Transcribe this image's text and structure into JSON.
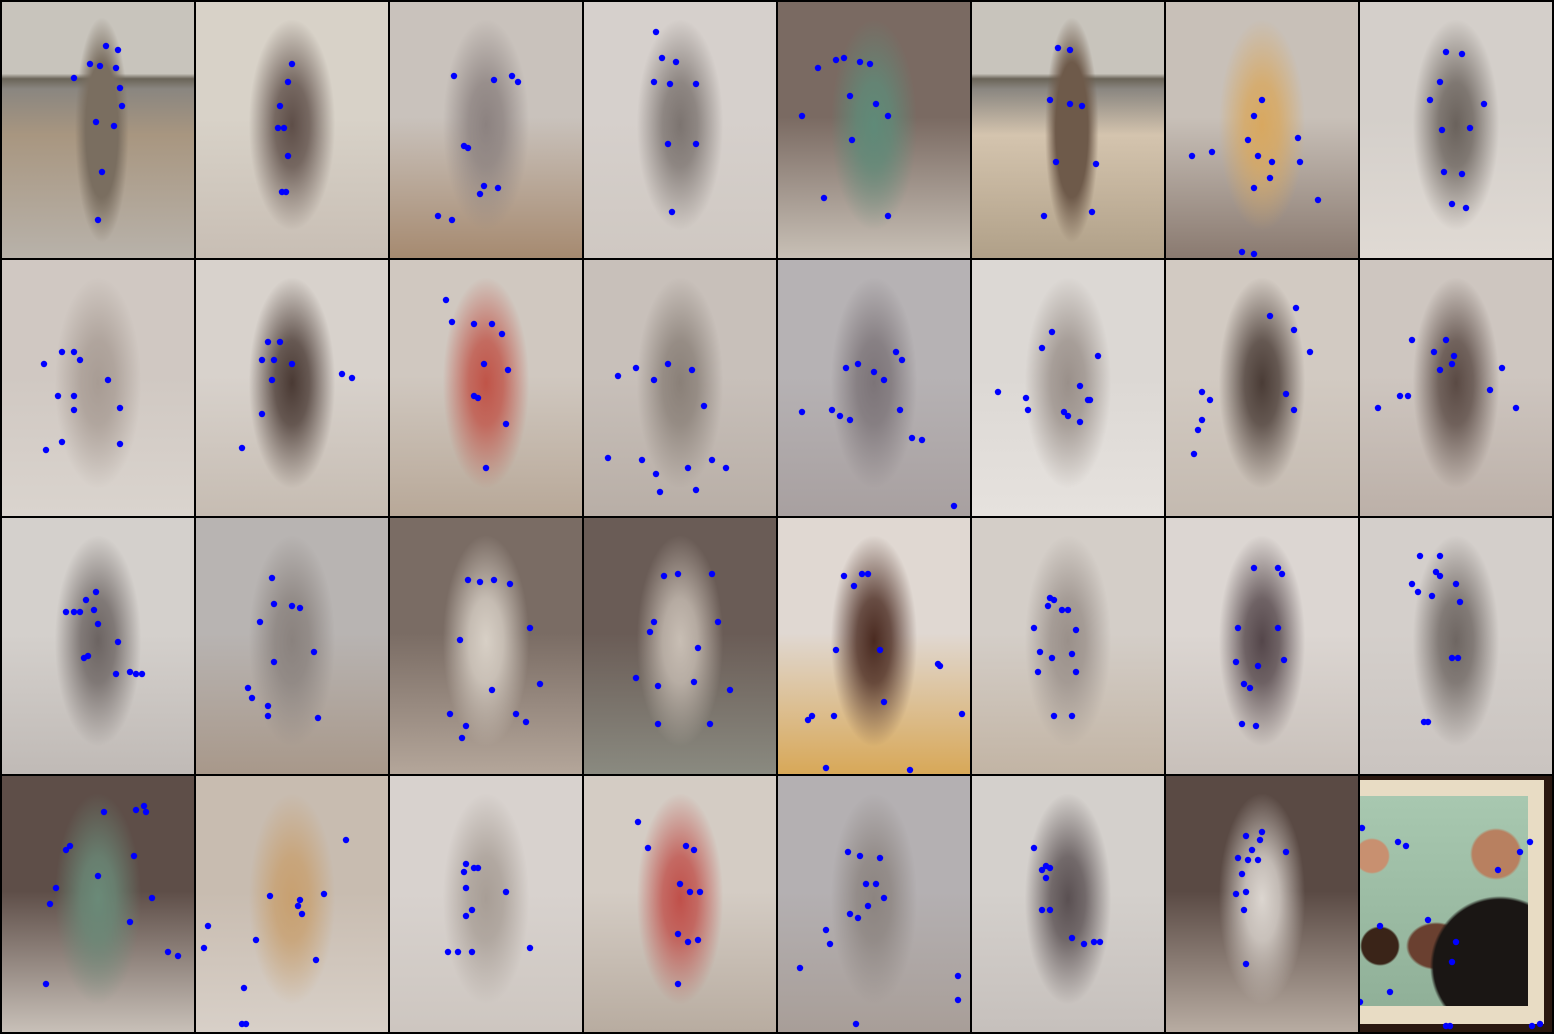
{
  "grid": {
    "rows": 4,
    "cols": 8,
    "keypoint_color": "#0000ff",
    "divider_color": "#000000"
  },
  "tiles": [
    {
      "scene": "beach-person-standing",
      "palette": [
        "#b8b2aa",
        "#7a6e60",
        "#a89680"
      ]
    },
    {
      "scene": "blurred-person-light-wall",
      "palette": [
        "#d8d2c8",
        "#5e4e48",
        "#c8beb4"
      ]
    },
    {
      "scene": "blurred-person-gray",
      "palette": [
        "#c9c2bc",
        "#8c8280",
        "#a68a70"
      ]
    },
    {
      "scene": "blurred-person-standing-gray",
      "palette": [
        "#d6d0cc",
        "#7c7470",
        "#cfc8c2"
      ]
    },
    {
      "scene": "blurred-people-green-chair",
      "palette": [
        "#7a6a62",
        "#5f8a78",
        "#c8c0b6"
      ]
    },
    {
      "scene": "beach-man-shorts",
      "palette": [
        "#b0a088",
        "#6e5a4a",
        "#d4c4ae"
      ]
    },
    {
      "scene": "blurred-figure-orange",
      "palette": [
        "#c8c0b8",
        "#d8a860",
        "#8a7a70"
      ]
    },
    {
      "scene": "blurred-person-rails",
      "palette": [
        "#d4cfca",
        "#6a625c",
        "#e0dad4"
      ]
    },
    {
      "scene": "blurred-light-gray",
      "palette": [
        "#d0c8c2",
        "#a89c94",
        "#dad4ce"
      ]
    },
    {
      "scene": "blurred-dark-diagonal",
      "palette": [
        "#d8d2cc",
        "#4a3a34",
        "#c6bcb2"
      ]
    },
    {
      "scene": "blurred-red-figure",
      "palette": [
        "#d0c8c0",
        "#c05448",
        "#b8a898"
      ]
    },
    {
      "scene": "blurred-gray-center",
      "palette": [
        "#c8c0ba",
        "#8a8078",
        "#b8aea6"
      ]
    },
    {
      "scene": "blurred-gray-blue",
      "palette": [
        "#b6b2b4",
        "#7c7478",
        "#a8a0a0"
      ]
    },
    {
      "scene": "blurred-light-horizontal",
      "palette": [
        "#dcd8d4",
        "#9a908a",
        "#e6e2de"
      ]
    },
    {
      "scene": "blurred-dark-figure-right",
      "palette": [
        "#d2cac2",
        "#4a3c36",
        "#c4bab0"
      ]
    },
    {
      "scene": "blurred-dark-mound",
      "palette": [
        "#cec6c0",
        "#5a4a44",
        "#bcb0a8"
      ]
    },
    {
      "scene": "blurred-figure-sea",
      "palette": [
        "#d4d0cc",
        "#6c6462",
        "#c0bab6"
      ]
    },
    {
      "scene": "blurred-gray-blue-2",
      "palette": [
        "#b8b4b2",
        "#8a827e",
        "#a8988a"
      ]
    },
    {
      "scene": "blurred-room-dark",
      "palette": [
        "#7a6c64",
        "#d8d0c6",
        "#b4a69a"
      ]
    },
    {
      "scene": "blurred-room-dark-2",
      "palette": [
        "#6a5c56",
        "#c8beb4",
        "#8a8a80"
      ]
    },
    {
      "scene": "blurred-dark-head",
      "palette": [
        "#e0d8d2",
        "#4a2a20",
        "#d8a858"
      ]
    },
    {
      "scene": "blurred-light-figure",
      "palette": [
        "#d4cec8",
        "#9a908a",
        "#c2b4a4"
      ]
    },
    {
      "scene": "blurred-dark-slim-figure",
      "palette": [
        "#dcd6d2",
        "#54464a",
        "#c8c0ba"
      ]
    },
    {
      "scene": "blurred-slim-figure",
      "palette": [
        "#d4cfcb",
        "#6e6662",
        "#cac4c0"
      ]
    },
    {
      "scene": "blurred-green-shapes",
      "palette": [
        "#5e4e48",
        "#6a8a78",
        "#c8c0b8"
      ]
    },
    {
      "scene": "blurred-orange-shapes",
      "palette": [
        "#c8bcb0",
        "#c8a070",
        "#d8d0c8"
      ]
    },
    {
      "scene": "blurred-light-gray-2",
      "palette": [
        "#d8d2ce",
        "#a89e96",
        "#cdc6c0"
      ]
    },
    {
      "scene": "blurred-red-figure-2",
      "palette": [
        "#d4ccc4",
        "#c0504a",
        "#b8aca0"
      ]
    },
    {
      "scene": "blurred-gray-blue-3",
      "palette": [
        "#b4b0b2",
        "#8c8480",
        "#a89e98"
      ]
    },
    {
      "scene": "blurred-dark-diagonal-2",
      "palette": [
        "#d4d0cc",
        "#5a5052",
        "#c6c0bc"
      ]
    },
    {
      "scene": "blurred-dark-top-light",
      "palette": [
        "#5a4a44",
        "#dcd6d0",
        "#b8aca2"
      ]
    },
    {
      "scene": "photo-two-men-donuts",
      "palette": [
        "#e8dcc4",
        "#6a4030",
        "#a8c8b0"
      ]
    }
  ]
}
